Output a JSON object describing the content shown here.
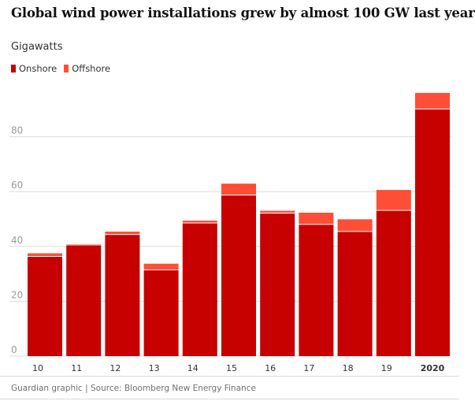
{
  "header": {
    "title": "Global wind power installations grew by almost 100 GW last year",
    "subtitle": "Gigawatts"
  },
  "legend": {
    "onshore_label": "Onshore",
    "offshore_label": "Offshore"
  },
  "colors": {
    "onshore": "#c70000",
    "offshore": "#ff4e36",
    "gridline": "#dcdcdc",
    "tick_label": "#999999"
  },
  "footer": {
    "source": "Guardian graphic | Source: Bloomberg New Energy Finance"
  },
  "chart_data": {
    "type": "bar",
    "stacked": true,
    "categories": [
      "10",
      "11",
      "12",
      "13",
      "14",
      "15",
      "16",
      "17",
      "18",
      "19",
      "2020"
    ],
    "series": [
      {
        "name": "Onshore",
        "color": "#c70000",
        "values": [
          36.2,
          40.4,
          44.2,
          31.3,
          48.4,
          58.6,
          52.0,
          47.9,
          45.3,
          53.0,
          90.0
        ]
      },
      {
        "name": "Offshore",
        "color": "#ff4e36",
        "values": [
          1.3,
          0.4,
          1.2,
          2.4,
          1.0,
          4.3,
          1.0,
          4.4,
          4.6,
          7.6,
          6.0
        ]
      }
    ],
    "ylim": [
      0,
      100
    ],
    "yticks": [
      0,
      20,
      40,
      60,
      80
    ],
    "grid": true,
    "legend_position": "top-left",
    "title": "Global wind power installations grew by almost 100 GW last year",
    "ylabel": "Gigawatts",
    "xlabel": ""
  }
}
